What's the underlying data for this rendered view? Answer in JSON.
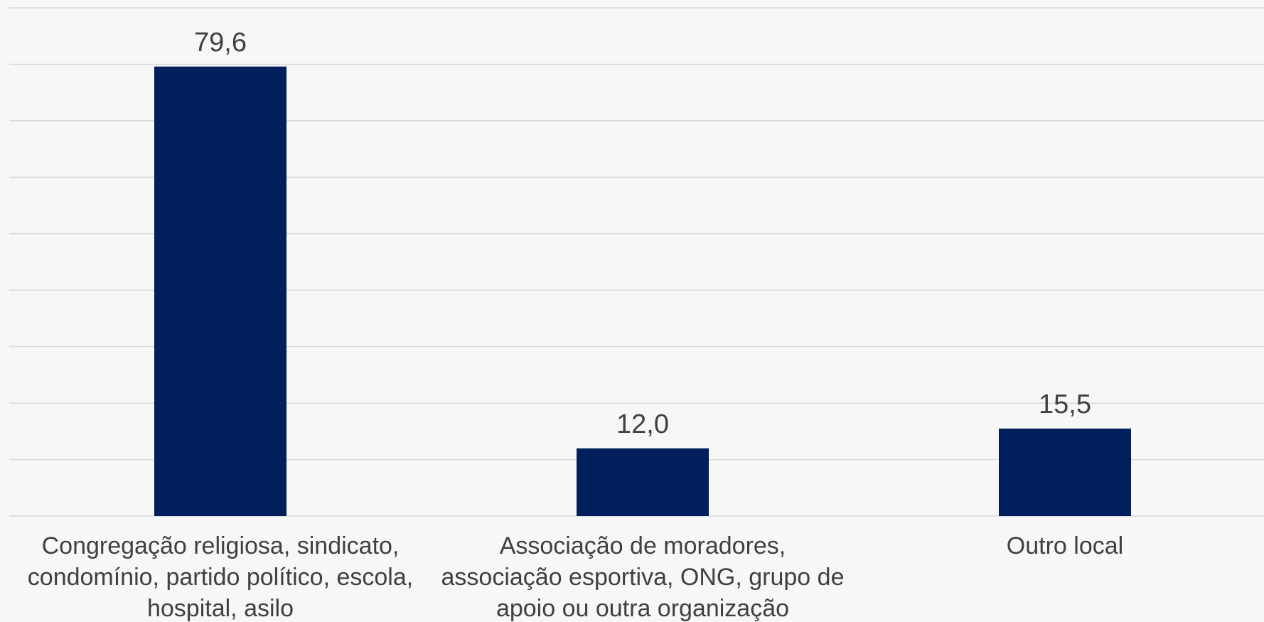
{
  "chart_data": {
    "type": "bar",
    "categories": [
      "Congregação religiosa, sindicato, condomínio, partido político, escola, hospital, asilo",
      "Associação de moradores, associação esportiva, ONG, grupo de apoio ou outra organização",
      "Outro local"
    ],
    "values": [
      79.6,
      12.0,
      15.5
    ],
    "value_labels": [
      "79,6",
      "12,0",
      "15,5"
    ],
    "color": "#001f5c",
    "ylim": [
      0,
      90
    ],
    "yticks": [
      0,
      10,
      20,
      30,
      40,
      50,
      60,
      70,
      80,
      90
    ],
    "grid": true
  }
}
